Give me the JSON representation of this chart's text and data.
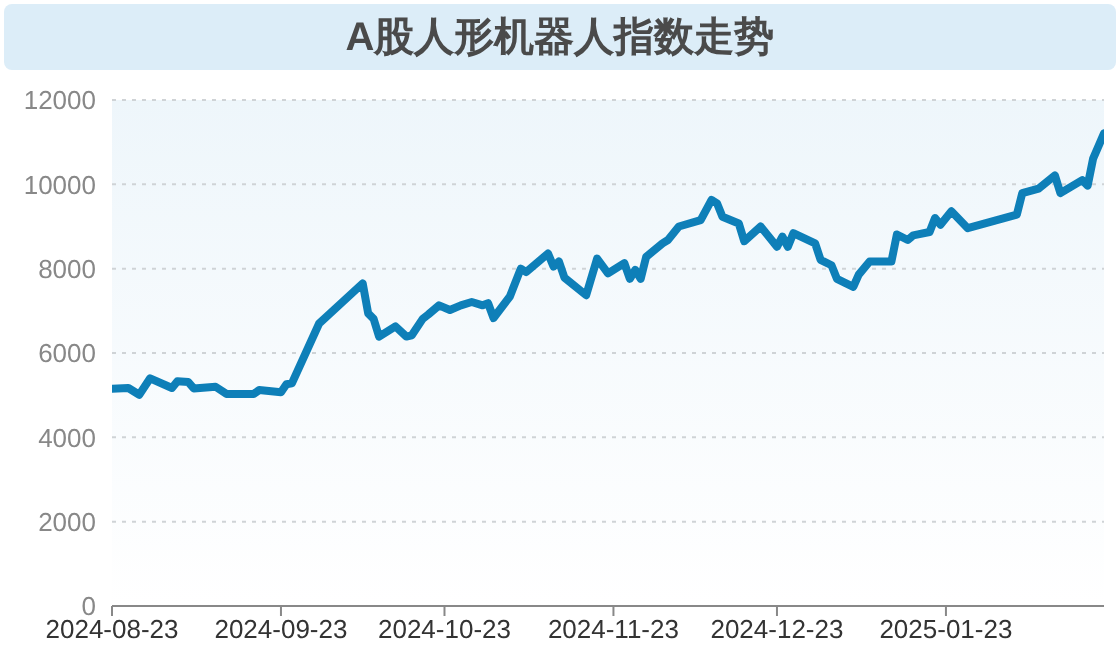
{
  "chart_data": {
    "type": "line",
    "title": "A股人形机器人指数走势",
    "x": [
      "2024-08-23",
      "2024-08-26",
      "2024-08-28",
      "2024-08-30",
      "2024-09-03",
      "2024-09-04",
      "2024-09-06",
      "2024-09-07",
      "2024-09-11",
      "2024-09-13",
      "2024-09-18",
      "2024-09-19",
      "2024-09-23",
      "2024-09-24",
      "2024-09-25",
      "2024-09-30",
      "2024-10-08",
      "2024-10-09",
      "2024-10-10",
      "2024-10-11",
      "2024-10-14",
      "2024-10-16",
      "2024-10-17",
      "2024-10-19",
      "2024-10-20",
      "2024-10-22",
      "2024-10-24",
      "2024-10-26",
      "2024-10-28",
      "2024-10-30",
      "2024-10-31",
      "2024-11-01",
      "2024-11-04",
      "2024-11-06",
      "2024-11-07",
      "2024-11-11",
      "2024-11-12",
      "2024-11-13",
      "2024-11-14",
      "2024-11-18",
      "2024-11-20",
      "2024-11-22",
      "2024-11-25",
      "2024-11-26",
      "2024-11-27",
      "2024-11-28",
      "2024-11-29",
      "2024-12-02",
      "2024-12-03",
      "2024-12-05",
      "2024-12-09",
      "2024-12-11",
      "2024-12-12",
      "2024-12-13",
      "2024-12-16",
      "2024-12-17",
      "2024-12-20",
      "2024-12-23",
      "2024-12-24",
      "2024-12-25",
      "2024-12-26",
      "2024-12-30",
      "2024-12-31",
      "2025-01-02",
      "2025-01-03",
      "2025-01-06",
      "2025-01-07",
      "2025-01-09",
      "2025-01-13",
      "2025-01-14",
      "2025-01-16",
      "2025-01-17",
      "2025-01-20",
      "2025-01-21",
      "2025-01-22",
      "2025-01-24",
      "2025-01-27",
      "2025-02-05",
      "2025-02-06",
      "2025-02-09",
      "2025-02-12",
      "2025-02-13",
      "2025-02-17",
      "2025-02-18",
      "2025-02-19",
      "2025-02-21"
    ],
    "series": [
      {
        "color": "#0e7fb8",
        "values": [
          5150,
          5170,
          5010,
          5400,
          5170,
          5330,
          5310,
          5160,
          5200,
          5030,
          5030,
          5120,
          5070,
          5260,
          5280,
          6700,
          7650,
          6940,
          6810,
          6390,
          6630,
          6390,
          6420,
          6810,
          6910,
          7130,
          7020,
          7130,
          7210,
          7130,
          7180,
          6830,
          7340,
          8000,
          7920,
          8360,
          8050,
          8170,
          7790,
          7370,
          8240,
          7890,
          8130,
          7760,
          7970,
          7760,
          8280,
          8600,
          8680,
          9000,
          9150,
          9630,
          9550,
          9230,
          9070,
          8650,
          9000,
          8520,
          8760,
          8520,
          8840,
          8600,
          8210,
          8080,
          7760,
          7570,
          7860,
          8170,
          8170,
          8810,
          8680,
          8790,
          8870,
          9200,
          9040,
          9360,
          8960,
          9280,
          9790,
          9900,
          10210,
          9790,
          10100,
          9970,
          10610,
          11210
        ]
      }
    ],
    "xlim": [
      "2024-08-23",
      "2025-02-21"
    ],
    "xticks": [
      "2024-08-23",
      "2024-09-23",
      "2024-10-23",
      "2024-11-23",
      "2024-12-23",
      "2025-01-23"
    ],
    "ylim": [
      0,
      12000
    ],
    "yticks": [
      0,
      2000,
      4000,
      6000,
      8000,
      10000,
      12000
    ],
    "grid": "y",
    "marker": "none",
    "line_style": "solid"
  }
}
